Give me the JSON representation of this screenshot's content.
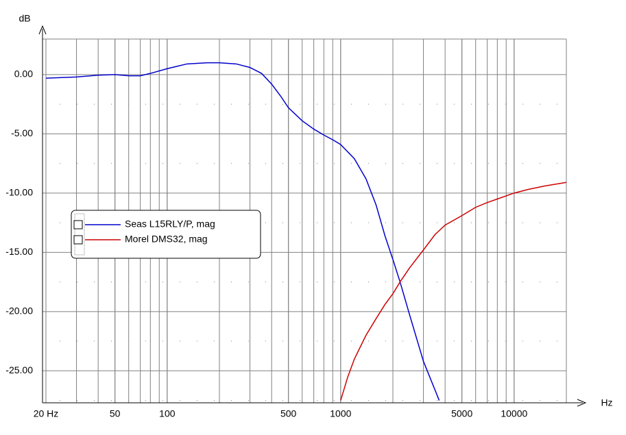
{
  "chart_data": {
    "type": "line",
    "y_label": "dB",
    "x_label": "Hz",
    "xscale": "log",
    "xlim": [
      20,
      20000
    ],
    "ylim": [
      -27.7,
      3
    ],
    "xticks": [
      {
        "value": 20,
        "label": "20 Hz"
      },
      50,
      100,
      500,
      1000,
      5000,
      10000
    ],
    "yticks": [
      {
        "value": 0,
        "label": "0.00"
      },
      {
        "value": -5,
        "label": "-5.00"
      },
      {
        "value": -10,
        "label": "-10.00"
      },
      {
        "value": -15,
        "label": "-15.00"
      },
      {
        "value": -20,
        "label": "-20.00"
      },
      {
        "value": -25,
        "label": "-25.00"
      }
    ],
    "grid": true,
    "series": [
      {
        "name": "Seas L15RLY/P, mag",
        "color": "#0000cc",
        "x": [
          20,
          30,
          40,
          50,
          60,
          70,
          80,
          100,
          130,
          170,
          200,
          250,
          300,
          350,
          400,
          450,
          500,
          600,
          700,
          800,
          900,
          1000,
          1200,
          1400,
          1600,
          1800,
          2000,
          2200,
          2500,
          3000,
          3700
        ],
        "values": [
          -0.3,
          -0.2,
          -0.05,
          0,
          -0.1,
          -0.1,
          0.1,
          0.5,
          0.9,
          1.0,
          1.0,
          0.9,
          0.6,
          0.1,
          -0.8,
          -1.8,
          -2.8,
          -3.9,
          -4.6,
          -5.1,
          -5.5,
          -5.9,
          -7.1,
          -8.8,
          -11,
          -13.6,
          -15.6,
          -17.5,
          -20.3,
          -24.2,
          -27.5
        ]
      },
      {
        "name": "Morel DMS32, mag",
        "color": "#cc0000",
        "x": [
          1000,
          1100,
          1200,
          1400,
          1600,
          1800,
          2000,
          2200,
          2500,
          3000,
          3500,
          4000,
          5000,
          6000,
          7000,
          8000,
          10000,
          12000,
          15000,
          20000
        ],
        "values": [
          -27.5,
          -25.5,
          -24,
          -22,
          -20.6,
          -19.4,
          -18.5,
          -17.5,
          -16.3,
          -14.8,
          -13.5,
          -12.7,
          -11.9,
          -11.2,
          -10.8,
          -10.5,
          -10.0,
          -9.7,
          -9.4,
          -9.1
        ]
      }
    ]
  }
}
